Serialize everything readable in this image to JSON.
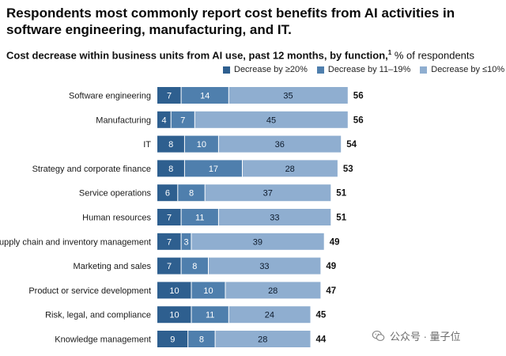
{
  "headline": "Respondents most commonly report cost benefits from AI activities in software engineering, manufacturing, and IT.",
  "subtitle": {
    "bold": "Cost decrease within business units from AI use, past 12 months, by function,",
    "sup": "1",
    "rest": " % of respondents"
  },
  "colors": {
    "dark": "#2e5f8f",
    "mid": "#4f7fad",
    "light": "#8faed0",
    "separator": "#ffffff",
    "label": "#1a1a1a"
  },
  "chart_data": {
    "type": "bar",
    "orientation": "horizontal",
    "stacked": true,
    "categories": [
      "Software engineering",
      "Manufacturing",
      "IT",
      "Strategy and corporate finance",
      "Service operations",
      "Human resources",
      "Supply chain and inventory management",
      "Marketing and sales",
      "Product or service development",
      "Risk, legal, and compliance",
      "Knowledge management"
    ],
    "series": [
      {
        "name": "Decrease by ≥20%",
        "color": "#2e5f8f",
        "values": [
          7,
          4,
          8,
          8,
          6,
          7,
          7,
          7,
          10,
          10,
          9
        ]
      },
      {
        "name": "Decrease by 11–19%",
        "color": "#4f7fad",
        "values": [
          14,
          7,
          10,
          17,
          8,
          11,
          3,
          8,
          10,
          11,
          8
        ]
      },
      {
        "name": "Decrease by ≤10%",
        "color": "#8faed0",
        "values": [
          35,
          45,
          36,
          28,
          37,
          33,
          39,
          33,
          28,
          24,
          28
        ]
      }
    ],
    "totals": [
      56,
      56,
      54,
      53,
      51,
      51,
      49,
      49,
      47,
      45,
      44
    ],
    "legend_position": "top-right",
    "grid": false
  },
  "watermark": {
    "text": "公众号 · 量子位",
    "icon": "wechat-icon"
  }
}
